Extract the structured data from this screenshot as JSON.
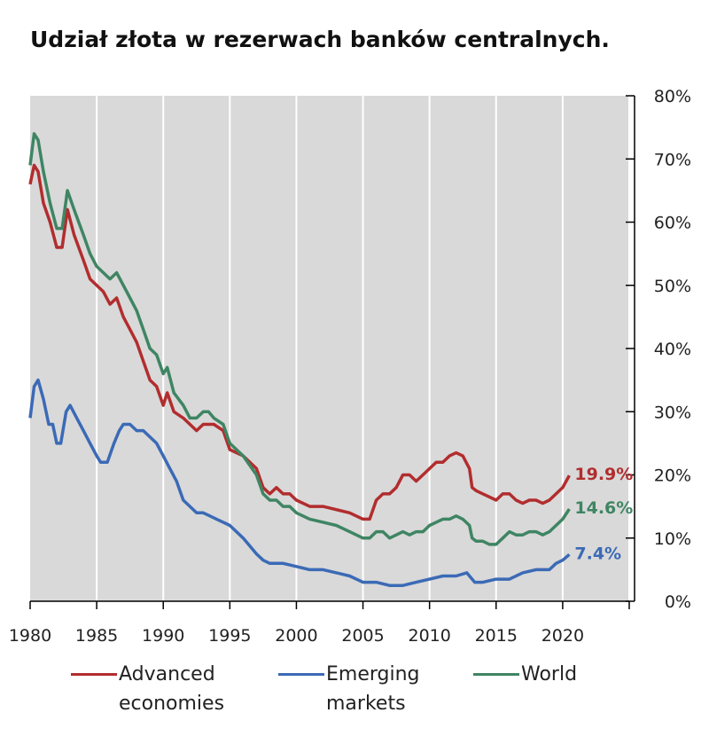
{
  "title": "Udział złota w rezerwach banków centralnych.",
  "chart_data": {
    "type": "line",
    "title": "Udział złota w rezerwach banków centralnych.",
    "xlabel": "",
    "ylabel": "",
    "xlim": [
      1980,
      2025
    ],
    "ylim": [
      0,
      80
    ],
    "x_ticks": [
      1980,
      1985,
      1990,
      1995,
      2000,
      2005,
      2010,
      2015,
      2020
    ],
    "x_tick_labels": [
      "1980",
      "1985",
      "1990",
      "1995",
      "2000",
      "2005",
      "2010",
      "2015",
      "2020"
    ],
    "y_ticks": [
      0,
      10,
      20,
      30,
      40,
      50,
      60,
      70,
      80
    ],
    "y_tick_labels": [
      "0%",
      "10%",
      "20%",
      "30%",
      "40%",
      "50%",
      "60%",
      "70%",
      "80%"
    ],
    "y_axis_side": "right",
    "grid": true,
    "legend_position": "bottom",
    "series": [
      {
        "name": "Advanced economies",
        "color": "#b22d2e",
        "end_label": "19.9%",
        "points": [
          [
            1980,
            66
          ],
          [
            1980.3,
            69
          ],
          [
            1980.6,
            68
          ],
          [
            1981,
            63
          ],
          [
            1981.5,
            60
          ],
          [
            1982,
            56
          ],
          [
            1982.4,
            56
          ],
          [
            1982.8,
            62
          ],
          [
            1983.3,
            58
          ],
          [
            1984,
            54
          ],
          [
            1984.5,
            51
          ],
          [
            1985,
            50
          ],
          [
            1985.5,
            49
          ],
          [
            1986,
            47
          ],
          [
            1986.5,
            48
          ],
          [
            1987,
            45
          ],
          [
            1987.5,
            43
          ],
          [
            1988,
            41
          ],
          [
            1988.5,
            38
          ],
          [
            1989,
            35
          ],
          [
            1989.5,
            34
          ],
          [
            1990,
            31
          ],
          [
            1990.3,
            33
          ],
          [
            1990.8,
            30
          ],
          [
            1991.5,
            29
          ],
          [
            1992,
            28
          ],
          [
            1992.5,
            27
          ],
          [
            1993,
            28
          ],
          [
            1993.4,
            28
          ],
          [
            1993.8,
            28
          ],
          [
            1994.5,
            27
          ],
          [
            1995,
            24
          ],
          [
            1996,
            23
          ],
          [
            1997,
            21
          ],
          [
            1997.5,
            18
          ],
          [
            1998,
            17
          ],
          [
            1998.5,
            18
          ],
          [
            1999,
            17
          ],
          [
            1999.5,
            17
          ],
          [
            2000,
            16
          ],
          [
            2001,
            15
          ],
          [
            2002,
            15
          ],
          [
            2003,
            14.5
          ],
          [
            2004,
            14
          ],
          [
            2005,
            13
          ],
          [
            2005.5,
            13
          ],
          [
            2006,
            16
          ],
          [
            2006.5,
            17
          ],
          [
            2007,
            17
          ],
          [
            2007.5,
            18
          ],
          [
            2008,
            20
          ],
          [
            2008.5,
            20
          ],
          [
            2009,
            19
          ],
          [
            2009.5,
            20
          ],
          [
            2010,
            21
          ],
          [
            2010.5,
            22
          ],
          [
            2011,
            22
          ],
          [
            2011.5,
            23
          ],
          [
            2012,
            23.5
          ],
          [
            2012.5,
            23
          ],
          [
            2013,
            21
          ],
          [
            2013.2,
            18
          ],
          [
            2013.5,
            17.5
          ],
          [
            2014,
            17
          ],
          [
            2014.5,
            16.5
          ],
          [
            2015,
            16
          ],
          [
            2015.5,
            17
          ],
          [
            2016,
            17
          ],
          [
            2016.5,
            16
          ],
          [
            2017,
            15.5
          ],
          [
            2017.5,
            16
          ],
          [
            2018,
            16
          ],
          [
            2018.5,
            15.5
          ],
          [
            2019,
            16
          ],
          [
            2019.5,
            17
          ],
          [
            2020,
            18
          ],
          [
            2020.5,
            19.9
          ]
        ]
      },
      {
        "name": "Emerging markets",
        "color": "#3b6ab6",
        "end_label": "7.4%",
        "points": [
          [
            1980,
            29
          ],
          [
            1980.3,
            34
          ],
          [
            1980.6,
            35
          ],
          [
            1981,
            32
          ],
          [
            1981.4,
            28
          ],
          [
            1981.7,
            28
          ],
          [
            1982,
            25
          ],
          [
            1982.3,
            25
          ],
          [
            1982.7,
            30
          ],
          [
            1983,
            31
          ],
          [
            1983.5,
            29
          ],
          [
            1984,
            27
          ],
          [
            1984.5,
            25
          ],
          [
            1985,
            23
          ],
          [
            1985.3,
            22
          ],
          [
            1985.8,
            22
          ],
          [
            1986.3,
            25
          ],
          [
            1986.7,
            27
          ],
          [
            1987,
            28
          ],
          [
            1987.5,
            28
          ],
          [
            1988,
            27
          ],
          [
            1988.5,
            27
          ],
          [
            1989,
            26
          ],
          [
            1989.5,
            25
          ],
          [
            1990,
            23
          ],
          [
            1990.5,
            21
          ],
          [
            1991,
            19
          ],
          [
            1991.5,
            16
          ],
          [
            1992,
            15
          ],
          [
            1992.5,
            14
          ],
          [
            1993,
            14
          ],
          [
            1993.5,
            13.5
          ],
          [
            1994,
            13
          ],
          [
            1995,
            12
          ],
          [
            1996,
            10
          ],
          [
            1997,
            7.5
          ],
          [
            1997.5,
            6.5
          ],
          [
            1998,
            6
          ],
          [
            1999,
            6
          ],
          [
            2000,
            5.5
          ],
          [
            2001,
            5
          ],
          [
            2002,
            5
          ],
          [
            2003,
            4.5
          ],
          [
            2004,
            4
          ],
          [
            2005,
            3
          ],
          [
            2006,
            3
          ],
          [
            2007,
            2.5
          ],
          [
            2008,
            2.5
          ],
          [
            2009,
            3
          ],
          [
            2010,
            3.5
          ],
          [
            2011,
            4
          ],
          [
            2012,
            4
          ],
          [
            2012.8,
            4.5
          ],
          [
            2013,
            4
          ],
          [
            2013.4,
            3
          ],
          [
            2014,
            3
          ],
          [
            2015,
            3.5
          ],
          [
            2016,
            3.5
          ],
          [
            2017,
            4.5
          ],
          [
            2018,
            5
          ],
          [
            2019,
            5
          ],
          [
            2019.5,
            6
          ],
          [
            2020,
            6.5
          ],
          [
            2020.5,
            7.4
          ]
        ]
      },
      {
        "name": "World",
        "color": "#3f8563",
        "end_label": "14.6%",
        "points": [
          [
            1980,
            69
          ],
          [
            1980.3,
            74
          ],
          [
            1980.6,
            73
          ],
          [
            1981,
            68
          ],
          [
            1981.5,
            63
          ],
          [
            1982,
            59
          ],
          [
            1982.4,
            59
          ],
          [
            1982.8,
            65
          ],
          [
            1983.3,
            62
          ],
          [
            1984,
            58
          ],
          [
            1984.5,
            55
          ],
          [
            1985,
            53
          ],
          [
            1985.5,
            52
          ],
          [
            1986,
            51
          ],
          [
            1986.5,
            52
          ],
          [
            1987,
            50
          ],
          [
            1987.5,
            48
          ],
          [
            1988,
            46
          ],
          [
            1988.5,
            43
          ],
          [
            1989,
            40
          ],
          [
            1989.5,
            39
          ],
          [
            1990,
            36
          ],
          [
            1990.3,
            37
          ],
          [
            1990.8,
            33
          ],
          [
            1991.5,
            31
          ],
          [
            1992,
            29
          ],
          [
            1992.5,
            29
          ],
          [
            1993,
            30
          ],
          [
            1993.4,
            30
          ],
          [
            1993.8,
            29
          ],
          [
            1994.5,
            28
          ],
          [
            1995,
            25
          ],
          [
            1996,
            23
          ],
          [
            1997,
            20
          ],
          [
            1997.5,
            17
          ],
          [
            1998,
            16
          ],
          [
            1998.5,
            16
          ],
          [
            1999,
            15
          ],
          [
            1999.5,
            15
          ],
          [
            2000,
            14
          ],
          [
            2001,
            13
          ],
          [
            2002,
            12.5
          ],
          [
            2003,
            12
          ],
          [
            2004,
            11
          ],
          [
            2005,
            10
          ],
          [
            2005.5,
            10
          ],
          [
            2006,
            11
          ],
          [
            2006.5,
            11
          ],
          [
            2007,
            10
          ],
          [
            2007.5,
            10.5
          ],
          [
            2008,
            11
          ],
          [
            2008.5,
            10.5
          ],
          [
            2009,
            11
          ],
          [
            2009.5,
            11
          ],
          [
            2010,
            12
          ],
          [
            2010.5,
            12.5
          ],
          [
            2011,
            13
          ],
          [
            2011.5,
            13
          ],
          [
            2012,
            13.5
          ],
          [
            2012.5,
            13
          ],
          [
            2013,
            12
          ],
          [
            2013.2,
            10
          ],
          [
            2013.5,
            9.5
          ],
          [
            2014,
            9.5
          ],
          [
            2014.5,
            9
          ],
          [
            2015,
            9
          ],
          [
            2015.5,
            10
          ],
          [
            2016,
            11
          ],
          [
            2016.5,
            10.5
          ],
          [
            2017,
            10.5
          ],
          [
            2017.5,
            11
          ],
          [
            2018,
            11
          ],
          [
            2018.5,
            10.5
          ],
          [
            2019,
            11
          ],
          [
            2019.5,
            12
          ],
          [
            2020,
            13
          ],
          [
            2020.5,
            14.6
          ]
        ]
      }
    ]
  },
  "legend": {
    "items": [
      {
        "label": "Advanced economies",
        "color": "#b22d2e"
      },
      {
        "label": "Emerging markets",
        "color": "#3b6ab6"
      },
      {
        "label": "World",
        "color": "#3f8563"
      }
    ]
  }
}
